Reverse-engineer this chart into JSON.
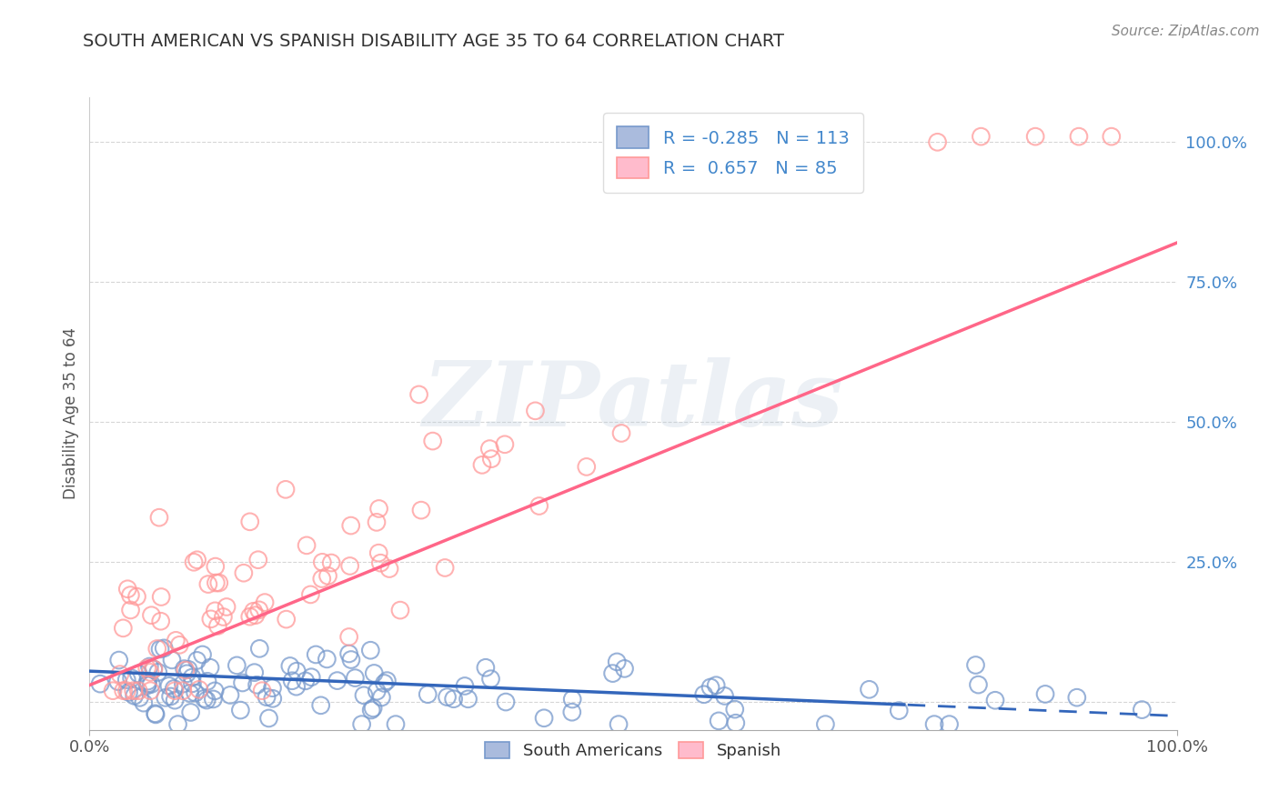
{
  "title": "SOUTH AMERICAN VS SPANISH DISABILITY AGE 35 TO 64 CORRELATION CHART",
  "source": "Source: ZipAtlas.com",
  "ylabel": "Disability Age 35 to 64",
  "xlim": [
    0,
    1.0
  ],
  "ylim": [
    -0.05,
    1.08
  ],
  "blue_color": "#7799CC",
  "blue_fill": "#AABBDD",
  "pink_color": "#FF9999",
  "pink_fill": "#FFBBCC",
  "blue_line_color": "#3366BB",
  "pink_line_color": "#FF6688",
  "blue_R": -0.285,
  "blue_N": 113,
  "pink_R": 0.657,
  "pink_N": 85,
  "watermark": "ZIPatlas",
  "legend_label_blue": "South Americans",
  "legend_label_pink": "Spanish",
  "grid_color": "#CCCCCC",
  "title_color": "#333333",
  "source_color": "#888888",
  "ylabel_color": "#555555",
  "ytick_color": "#4488CC",
  "xtick_color": "#555555"
}
